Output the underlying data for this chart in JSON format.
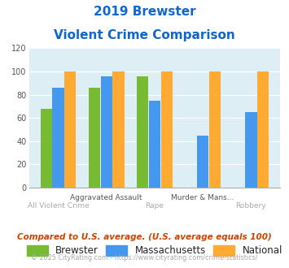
{
  "title_line1": "2019 Brewster",
  "title_line2": "Violent Crime Comparison",
  "top_labels": [
    "",
    "Aggravated Assault",
    "",
    "Murder & Mans...",
    ""
  ],
  "bottom_labels": [
    "All Violent Crime",
    "",
    "Rape",
    "",
    "Robbery"
  ],
  "brewster": [
    68,
    86,
    96,
    0,
    0
  ],
  "massachusetts": [
    86,
    96,
    75,
    45,
    65
  ],
  "national": [
    100,
    100,
    100,
    100,
    100
  ],
  "brewster_color": "#77bb33",
  "massachusetts_color": "#4499ee",
  "national_color": "#ffaa33",
  "bg_color": "#ddeef5",
  "ylim": [
    0,
    120
  ],
  "yticks": [
    0,
    20,
    40,
    60,
    80,
    100,
    120
  ],
  "title_color": "#1166cc",
  "footer_note": "Compared to U.S. average. (U.S. average equals 100)",
  "footer_credit": "© 2025 CityRating.com - https://www.cityrating.com/crime-statistics/",
  "legend_labels": [
    "Brewster",
    "Massachusetts",
    "National"
  ]
}
